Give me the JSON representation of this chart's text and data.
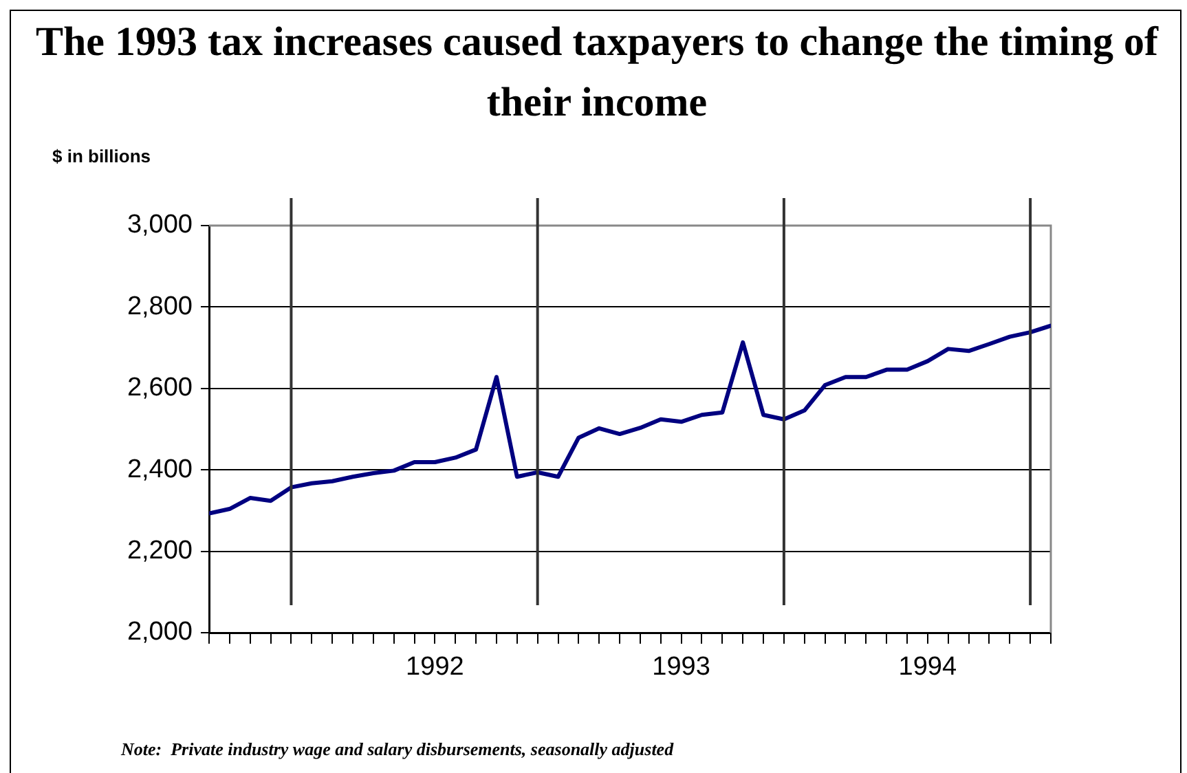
{
  "chart_data": {
    "type": "line",
    "title": "The 1993 tax increases caused taxpayers to change the timing of their income",
    "ylabel": "$ in billions",
    "annotations": [
      "Note:  Private industry wage and salary disbursements, seasonally adjusted"
    ],
    "x": [
      "1991-10",
      "1991-11",
      "1991-12",
      "1992-01",
      "1992-02",
      "1992-03",
      "1992-04",
      "1992-05",
      "1992-06",
      "1992-07",
      "1992-08",
      "1992-09",
      "1992-10",
      "1992-11",
      "1992-12",
      "1993-01",
      "1993-02",
      "1993-03",
      "1993-04",
      "1993-05",
      "1993-06",
      "1993-07",
      "1993-08",
      "1993-09",
      "1993-10",
      "1993-11",
      "1993-12",
      "1994-01",
      "1994-02",
      "1994-03",
      "1994-04",
      "1994-05",
      "1994-06",
      "1994-07",
      "1994-08",
      "1994-09",
      "1994-10",
      "1994-11",
      "1994-12",
      "1995-01",
      "1995-02",
      "1995-03"
    ],
    "series": [
      {
        "color": "#000080",
        "values": [
          2293,
          2304,
          2331,
          2324,
          2357,
          2367,
          2372,
          2383,
          2392,
          2398,
          2419,
          2419,
          2430,
          2450,
          2628,
          2383,
          2394,
          2383,
          2479,
          2502,
          2488,
          2503,
          2524,
          2518,
          2535,
          2541,
          2713,
          2535,
          2524,
          2546,
          2608,
          2628,
          2628,
          2646,
          2646,
          2667,
          2697,
          2692,
          2709,
          2727,
          2738,
          2754
        ]
      }
    ],
    "xlim": [
      "1991-10",
      "1995-03"
    ],
    "xticks": [
      {
        "value": "1991-10",
        "label": null
      },
      {
        "value": "1991-11",
        "label": null
      },
      {
        "value": "1991-12",
        "label": null
      },
      {
        "value": "1992-01",
        "label": null
      },
      {
        "value": "1992-02",
        "label": null
      },
      {
        "value": "1992-03",
        "label": null
      },
      {
        "value": "1992-04",
        "label": null
      },
      {
        "value": "1992-05",
        "label": null
      },
      {
        "value": "1992-06",
        "label": null
      },
      {
        "value": "1992-07",
        "label": null
      },
      {
        "value": "1992-08",
        "label": null
      },
      {
        "value": "1992-09",
        "label": "1992"
      },
      {
        "value": "1992-10",
        "label": null
      },
      {
        "value": "1992-11",
        "label": null
      },
      {
        "value": "1992-12",
        "label": null
      },
      {
        "value": "1993-01",
        "label": null
      },
      {
        "value": "1993-02",
        "label": null
      },
      {
        "value": "1993-03",
        "label": null
      },
      {
        "value": "1993-04",
        "label": null
      },
      {
        "value": "1993-05",
        "label": null
      },
      {
        "value": "1993-06",
        "label": null
      },
      {
        "value": "1993-07",
        "label": null
      },
      {
        "value": "1993-08",
        "label": null
      },
      {
        "value": "1993-09",
        "label": "1993"
      },
      {
        "value": "1993-10",
        "label": null
      },
      {
        "value": "1993-11",
        "label": null
      },
      {
        "value": "1993-12",
        "label": null
      },
      {
        "value": "1994-01",
        "label": null
      },
      {
        "value": "1994-02",
        "label": null
      },
      {
        "value": "1994-03",
        "label": null
      },
      {
        "value": "1994-04",
        "label": null
      },
      {
        "value": "1994-05",
        "label": null
      },
      {
        "value": "1994-06",
        "label": null
      },
      {
        "value": "1994-07",
        "label": null
      },
      {
        "value": "1994-08",
        "label": null
      },
      {
        "value": "1994-09",
        "label": "1994"
      },
      {
        "value": "1994-10",
        "label": null
      },
      {
        "value": "1994-11",
        "label": null
      },
      {
        "value": "1994-12",
        "label": null
      },
      {
        "value": "1995-01",
        "label": null
      },
      {
        "value": "1995-02",
        "label": null
      },
      {
        "value": "1995-03",
        "label": null
      }
    ],
    "ylim": [
      2000,
      3000
    ],
    "yticks": [
      {
        "value": 2000,
        "label": "2,000"
      },
      {
        "value": 2200,
        "label": "2,200"
      },
      {
        "value": 2400,
        "label": "2,400"
      },
      {
        "value": 2600,
        "label": "2,600"
      },
      {
        "value": 2800,
        "label": "2,800"
      },
      {
        "value": 3000,
        "label": "3,000"
      }
    ],
    "ref_lines": [
      {
        "axis": "x",
        "value": "1992-02",
        "color": "#333333"
      },
      {
        "axis": "x",
        "value": "1993-02",
        "color": "#333333"
      },
      {
        "axis": "x",
        "value": "1994-02",
        "color": "#333333"
      },
      {
        "axis": "x",
        "value": "1995-02",
        "color": "#333333"
      }
    ],
    "grid": "y"
  }
}
